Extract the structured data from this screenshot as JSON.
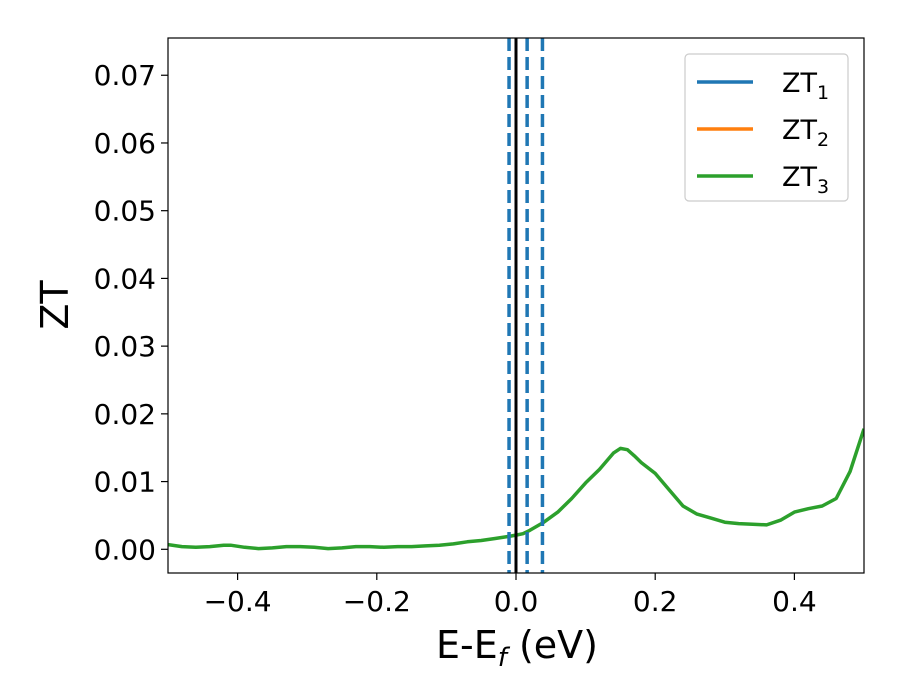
{
  "chart_data": {
    "type": "line",
    "xlabel": "E-E",
    "xlabel_subscript": "f",
    "xlabel_unit": " (eV)",
    "ylabel": "ZT",
    "xlim": [
      -0.5,
      0.5
    ],
    "ylim": [
      -0.0035,
      0.0755
    ],
    "xticks": [
      -0.4,
      -0.2,
      0.0,
      0.2,
      0.4
    ],
    "xtick_labels": [
      "−0.4",
      "−0.2",
      "0.0",
      "0.2",
      "0.4"
    ],
    "yticks": [
      0.0,
      0.01,
      0.02,
      0.03,
      0.04,
      0.05,
      0.06,
      0.07
    ],
    "ytick_labels": [
      "0.00",
      "0.01",
      "0.02",
      "0.03",
      "0.04",
      "0.05",
      "0.06",
      "0.07"
    ],
    "grid": false,
    "legend_position": "top-right",
    "series": [
      {
        "name": "ZT",
        "subscript": "1",
        "color": "#1f77b4",
        "x": [],
        "y": []
      },
      {
        "name": "ZT",
        "subscript": "2",
        "color": "#ff7f0e",
        "x": [],
        "y": []
      },
      {
        "name": "ZT",
        "subscript": "3",
        "color": "#2ca02c",
        "x": [
          -0.5,
          -0.48,
          -0.46,
          -0.44,
          -0.42,
          -0.41,
          -0.39,
          -0.37,
          -0.35,
          -0.33,
          -0.31,
          -0.29,
          -0.27,
          -0.25,
          -0.23,
          -0.21,
          -0.19,
          -0.17,
          -0.15,
          -0.13,
          -0.11,
          -0.09,
          -0.07,
          -0.05,
          -0.03,
          -0.01,
          0.0,
          0.01,
          0.02,
          0.04,
          0.06,
          0.08,
          0.1,
          0.12,
          0.14,
          0.15,
          0.16,
          0.17,
          0.18,
          0.2,
          0.22,
          0.24,
          0.26,
          0.28,
          0.3,
          0.32,
          0.34,
          0.36,
          0.38,
          0.4,
          0.42,
          0.44,
          0.46,
          0.48,
          0.5
        ],
        "y": [
          0.0007,
          0.0004,
          0.0003,
          0.0004,
          0.0006,
          0.0006,
          0.0003,
          0.0001,
          0.0002,
          0.0004,
          0.0004,
          0.0003,
          0.0001,
          0.0002,
          0.0004,
          0.0004,
          0.0003,
          0.0004,
          0.0004,
          0.0005,
          0.0006,
          0.0008,
          0.0011,
          0.0013,
          0.0016,
          0.0019,
          0.0021,
          0.0023,
          0.0028,
          0.004,
          0.0055,
          0.0075,
          0.0098,
          0.0118,
          0.0142,
          0.0149,
          0.0147,
          0.0138,
          0.0128,
          0.0112,
          0.0088,
          0.0064,
          0.0052,
          0.0046,
          0.004,
          0.0038,
          0.0037,
          0.0036,
          0.0043,
          0.0055,
          0.006,
          0.0064,
          0.0075,
          0.0115,
          0.0178
        ]
      }
    ],
    "vlines": [
      {
        "x": -0.01,
        "style": "dashed",
        "color": "#1f77b4"
      },
      {
        "x": 0.0,
        "style": "solid",
        "color": "#000000"
      },
      {
        "x": 0.016,
        "style": "dashed",
        "color": "#1f77b4"
      },
      {
        "x": 0.038,
        "style": "dashed",
        "color": "#1f77b4"
      }
    ]
  }
}
